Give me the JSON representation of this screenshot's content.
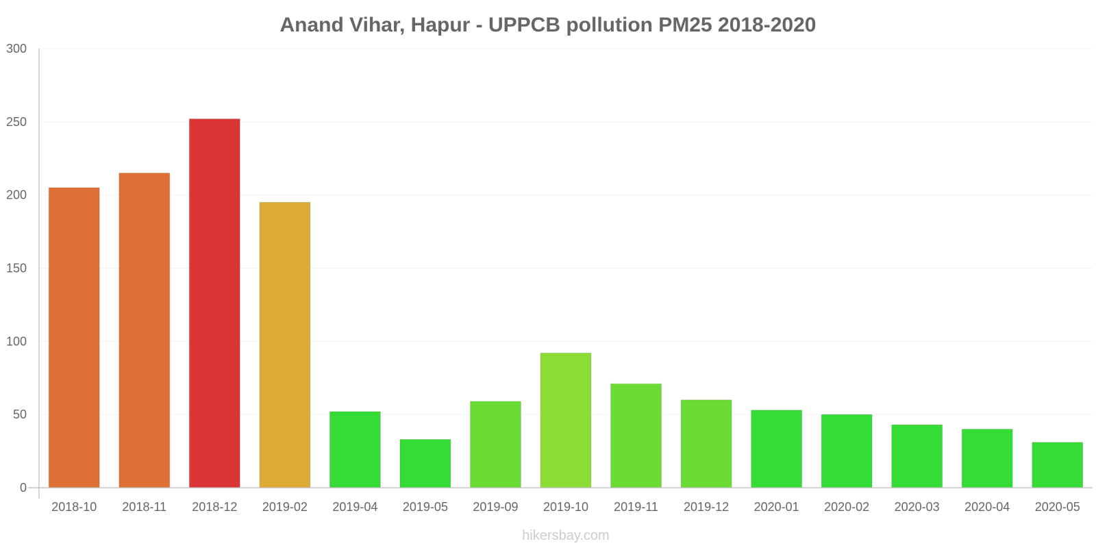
{
  "chart_data": {
    "type": "bar",
    "title": "Anand Vihar, Hapur - UPPCB pollution PM25 2018-2020",
    "xlabel": "",
    "ylabel": "",
    "ylim": [
      0,
      300
    ],
    "yticks": [
      0,
      50,
      100,
      150,
      200,
      250,
      300
    ],
    "grid": true,
    "categories": [
      "2018-10",
      "2018-11",
      "2018-12",
      "2019-02",
      "2019-04",
      "2019-05",
      "2019-09",
      "2019-10",
      "2019-11",
      "2019-12",
      "2020-01",
      "2020-02",
      "2020-03",
      "2020-04",
      "2020-05"
    ],
    "values": [
      205,
      215,
      252,
      195,
      52,
      33,
      59,
      92,
      71,
      60,
      53,
      50,
      43,
      40,
      31
    ],
    "colors": [
      "#de7035",
      "#de7035",
      "#dc3535",
      "#dcaa35",
      "#35dc35",
      "#35dc35",
      "#6bdc35",
      "#8bdc35",
      "#6bdc35",
      "#6bdc35",
      "#35dc35",
      "#35dc35",
      "#35dc35",
      "#35dc35",
      "#35dc35"
    ]
  },
  "credit": "hikersbay.com"
}
